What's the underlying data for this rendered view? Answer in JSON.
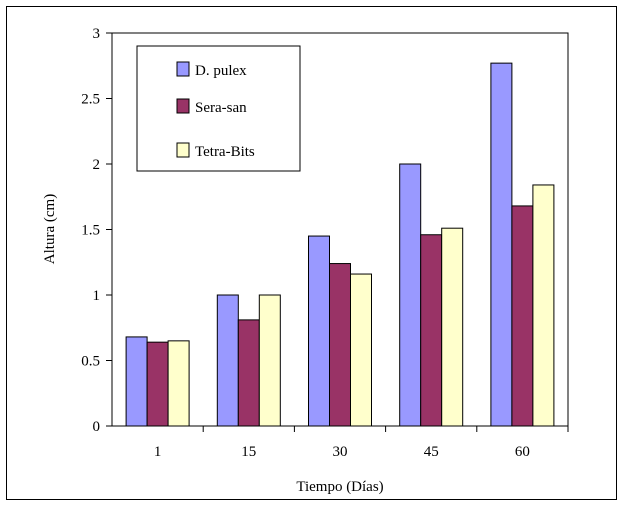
{
  "chart_data": {
    "type": "bar",
    "title": "",
    "xlabel": "Tiempo (Días)",
    "ylabel": "Altura (cm)",
    "categories": [
      "1",
      "15",
      "30",
      "45",
      "60"
    ],
    "ylim": [
      0,
      3
    ],
    "yticks": [
      "0",
      "0.5",
      "1",
      "1.5",
      "2",
      "2.5",
      "3"
    ],
    "grid": false,
    "legend_position": "top-left",
    "series": [
      {
        "name": "D. pulex",
        "color": "#9999ff",
        "values": [
          0.68,
          1.0,
          1.45,
          2.0,
          2.77
        ]
      },
      {
        "name": "Sera-san",
        "color": "#993366",
        "values": [
          0.64,
          0.81,
          1.24,
          1.46,
          1.68
        ]
      },
      {
        "name": "Tetra-Bits",
        "color": "#ffffcc",
        "values": [
          0.65,
          1.0,
          1.16,
          1.51,
          1.84
        ]
      }
    ]
  }
}
